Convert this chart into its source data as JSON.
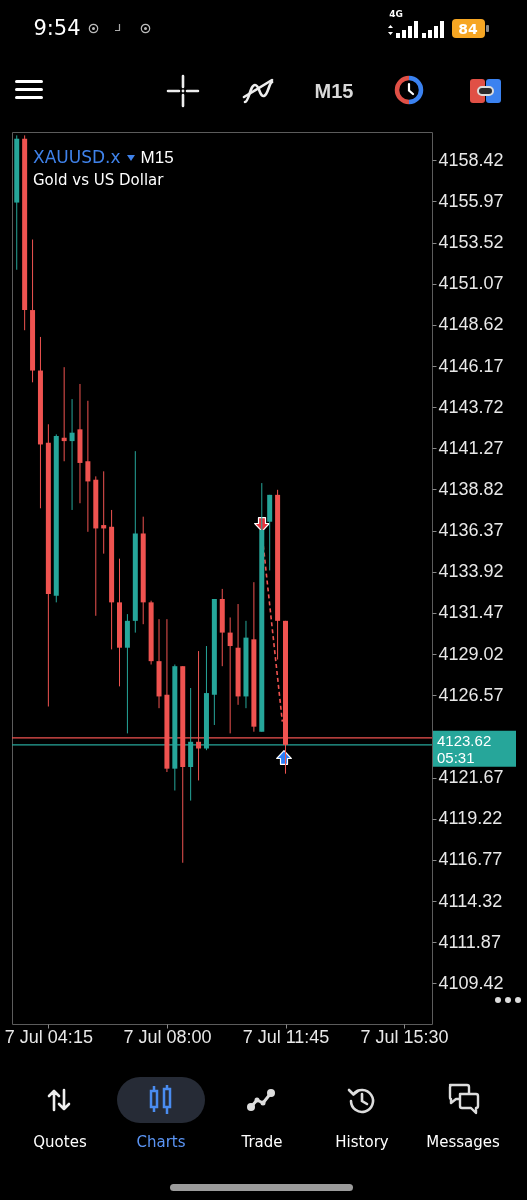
{
  "chart_data": {
    "type": "candlestick",
    "title": "XAUUSD.x",
    "subtitle": "Gold vs US Dollar",
    "x": [
      "--07-07T03:15",
      "--07-07T03:30",
      "--07-07T03:45",
      "--07-07T04:00",
      "--07-07T04:15",
      "--07-07T04:30",
      "--07-07T04:45",
      "--07-07T05:00",
      "--07-07T05:15",
      "--07-07T05:30",
      "--07-07T05:45",
      "--07-07T06:00",
      "--07-07T06:15",
      "--07-07T06:30",
      "--07-07T06:45",
      "--07-07T07:00",
      "--07-07T07:15",
      "--07-07T07:30",
      "--07-07T07:45",
      "--07-07T08:00",
      "--07-07T08:15",
      "--07-07T08:30",
      "--07-07T08:45",
      "--07-07T09:00",
      "--07-07T09:15",
      "--07-07T09:30",
      "--07-07T09:45",
      "--07-07T10:00",
      "--07-07T10:15",
      "--07-07T10:30",
      "--07-07T10:45",
      "--07-07T11:00",
      "--07-07T11:15",
      "--07-07T11:30",
      "--07-07T11:45"
    ],
    "ohlc": [
      [
        4155.9,
        4159.9,
        4151.9,
        4159.7
      ],
      [
        4159.7,
        4159.9,
        4148.3,
        4149.5
      ],
      [
        4149.5,
        4153.7,
        4145.2,
        4145.9
      ],
      [
        4145.9,
        4147.9,
        4137.7,
        4141.5
      ],
      [
        4141.6,
        4142.7,
        4125.9,
        4132.6
      ],
      [
        4132.5,
        4142.1,
        4132.1,
        4142.0
      ],
      [
        4141.9,
        4146.1,
        4140.5,
        4141.7
      ],
      [
        4141.7,
        4144.2,
        4137.6,
        4142.2
      ],
      [
        4142.4,
        4145.1,
        4138.0,
        4140.4
      ],
      [
        4140.5,
        4144.1,
        4136.3,
        4139.3
      ],
      [
        4139.4,
        4139.6,
        4131.3,
        4136.5
      ],
      [
        4136.7,
        4139.9,
        4135.0,
        4136.5
      ],
      [
        4136.6,
        4137.6,
        4129.3,
        4132.1
      ],
      [
        4132.1,
        4134.7,
        4127.1,
        4129.4
      ],
      [
        4129.4,
        4131.4,
        4124.3,
        4131.0
      ],
      [
        4131.0,
        4141.1,
        4130.3,
        4136.2
      ],
      [
        4136.2,
        4137.2,
        4130.8,
        4132.1
      ],
      [
        4132.1,
        4132.2,
        4128.4,
        4128.6
      ],
      [
        4128.6,
        4131.1,
        4125.8,
        4126.5
      ],
      [
        4126.6,
        4131.1,
        4122.0,
        4122.2
      ],
      [
        4122.2,
        4128.4,
        4120.9,
        4128.3
      ],
      [
        4128.3,
        4128.3,
        4116.6,
        4122.3
      ],
      [
        4122.3,
        4127.0,
        4120.3,
        4123.8
      ],
      [
        4123.8,
        4129.2,
        4121.5,
        4123.4
      ],
      [
        4123.4,
        4129.5,
        4123.3,
        4126.7
      ],
      [
        4126.6,
        4132.3,
        4124.8,
        4132.3
      ],
      [
        4132.3,
        4132.9,
        4128.3,
        4130.3
      ],
      [
        4130.3,
        4131.2,
        4124.3,
        4129.5
      ],
      [
        4129.4,
        4132.0,
        4126.0,
        4126.5
      ],
      [
        4126.5,
        4131.0,
        4125.8,
        4130.0
      ],
      [
        4129.9,
        4133.3,
        4124.4,
        4124.7
      ],
      [
        4124.4,
        4139.2,
        4124.4,
        4136.4
      ],
      [
        4136.9,
        4138.5,
        4134.0,
        4138.5
      ],
      [
        4138.5,
        4138.8,
        4128.7,
        4131.0
      ],
      [
        4131.0,
        4131.0,
        4121.9,
        4123.62
      ]
    ],
    "colors": [
      "#26a69a",
      "#ef5350",
      "#ef5350",
      "#ef5350",
      "#ef5350",
      "#26a69a",
      "#ef5350",
      "#26a69a",
      "#ef5350",
      "#ef5350",
      "#ef5350",
      "#ef5350",
      "#ef5350",
      "#ef5350",
      "#26a69a",
      "#26a69a",
      "#ef5350",
      "#ef5350",
      "#ef5350",
      "#ef5350",
      "#26a69a",
      "#ef5350",
      "#26a69a",
      "#ef5350",
      "#26a69a",
      "#26a69a",
      "#ef5350",
      "#ef5350",
      "#ef5350",
      "#26a69a",
      "#ef5350",
      "#26a69a",
      "#26a69a",
      "#ef5350",
      "#ef5350"
    ],
    "series": [
      {
        "type": "line",
        "x": [
          "--07-07T11:00",
          "--07-07T11:39"
        ],
        "values": [
          4136.3,
          4125.0
        ],
        "color": "#ef5350",
        "line_style": "dashed"
      }
    ],
    "xlim": [
      "--07-07T03:06",
      "--07-07T16:23"
    ],
    "xticks": [
      {
        "value": "--07-07T04:15",
        "label": "7 Jul 04:15"
      },
      {
        "value": "--07-07T08:00",
        "label": "7 Jul 08:00"
      },
      {
        "value": "--07-07T11:45",
        "label": "7 Jul 11:45"
      },
      {
        "value": "--07-07T15:30",
        "label": "7 Jul 15:30"
      }
    ],
    "ylim": [
      4107.0,
      4160.1
    ],
    "yticks": [
      4109.42,
      4111.87,
      4114.32,
      4116.77,
      4119.22,
      4121.67,
      4126.57,
      4129.02,
      4131.47,
      4133.92,
      4136.37,
      4138.82,
      4141.27,
      4143.72,
      4146.17,
      4148.62,
      4151.07,
      4153.52,
      4155.97,
      4158.42
    ],
    "ref_lines": [
      {
        "axis": "y",
        "value": 4124.03,
        "color": "#ef5350"
      },
      {
        "axis": "y",
        "value": 4123.62,
        "label": "4123.62",
        "color": "#26a69a"
      }
    ],
    "annotations": [
      "05:31",
      "M15",
      "M15",
      "9:54",
      "4G",
      "84",
      "Quotes",
      "Charts",
      "Trade",
      "History",
      "Messages"
    ]
  }
}
